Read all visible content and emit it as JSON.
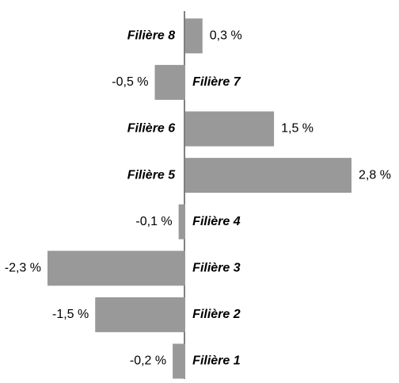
{
  "chart_data": {
    "type": "bar",
    "orientation": "horizontal",
    "categories": [
      "Filière 8",
      "Filière 7",
      "Filière 6",
      "Filière 5",
      "Filière 4",
      "Filière 3",
      "Filière 2",
      "Filière 1"
    ],
    "values": [
      0.3,
      -0.5,
      1.5,
      2.8,
      -0.1,
      -2.3,
      -1.5,
      -0.2
    ],
    "value_labels": [
      "0,3 %",
      "-0,5 %",
      "1,5 %",
      "2,8 %",
      "-0,1 %",
      "-2,3 %",
      "-1,5 %",
      "-0,2 %"
    ],
    "color": "#999999",
    "xlim": [
      -2.3,
      2.8
    ],
    "grid": false
  }
}
